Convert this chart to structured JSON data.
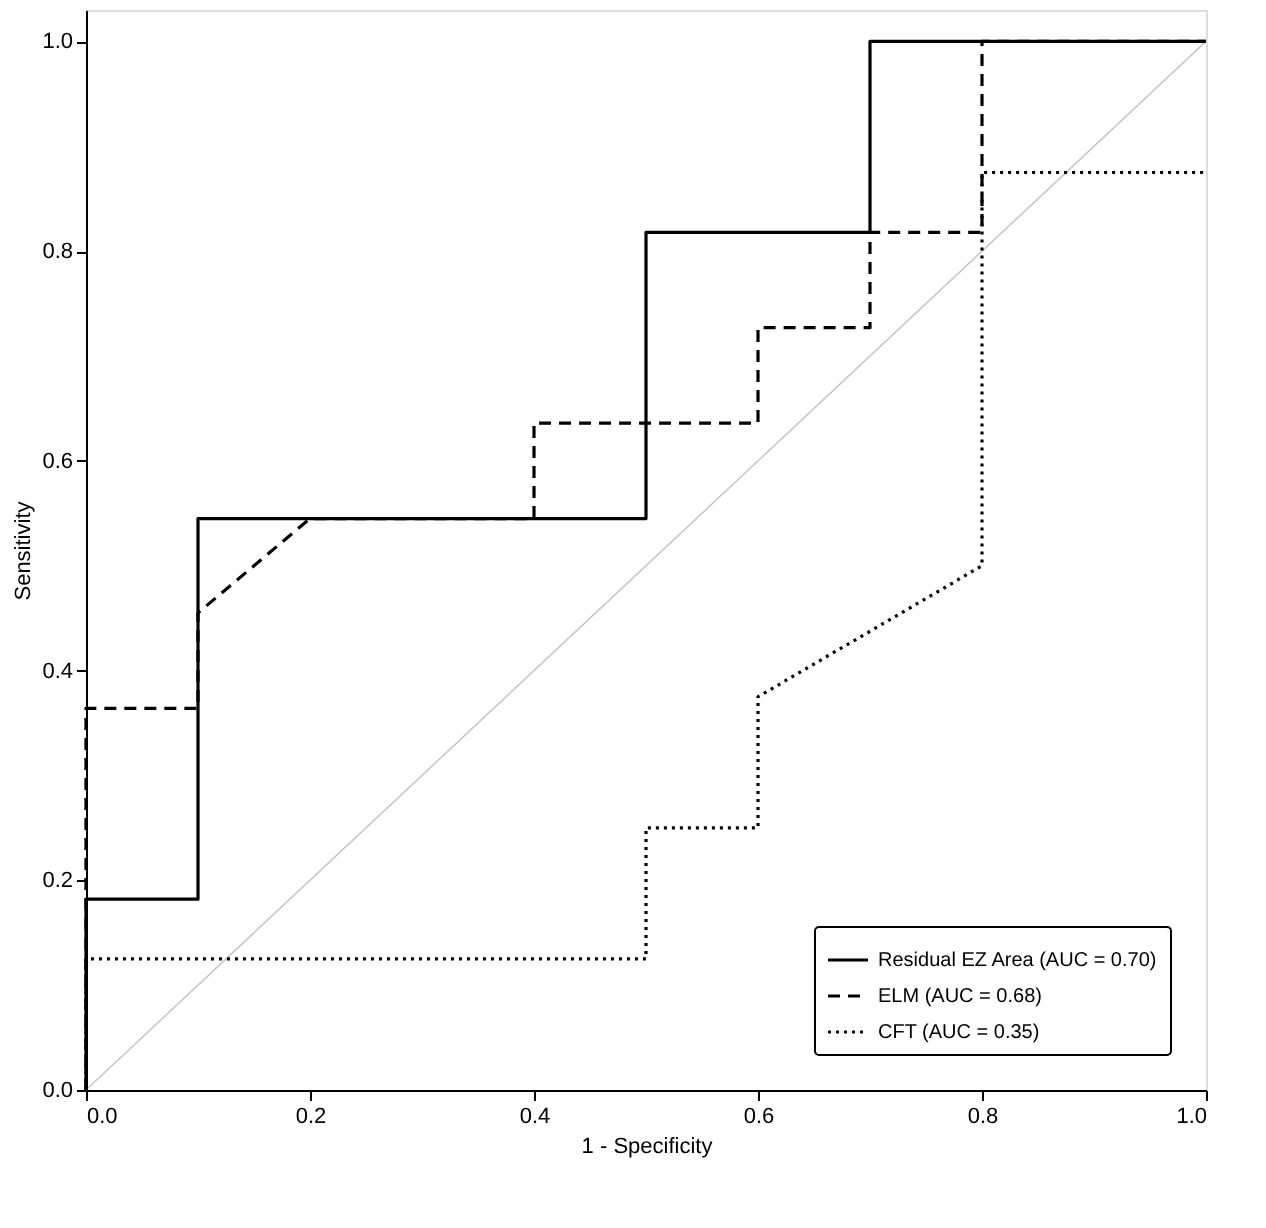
{
  "chart_data": {
    "type": "line",
    "xlabel": "1 - Specificity",
    "ylabel": "Sensitivity",
    "xlim": [
      0,
      1
    ],
    "ylim": [
      0,
      1.03
    ],
    "xticks": [
      {
        "value": 0,
        "label": "0.0"
      },
      {
        "value": 0.2,
        "label": "0.2"
      },
      {
        "value": 0.4,
        "label": "0.4"
      },
      {
        "value": 0.6,
        "label": "0.6"
      },
      {
        "value": 0.8,
        "label": "0.8"
      },
      {
        "value": 1,
        "label": "1.0"
      }
    ],
    "yticks": [
      {
        "value": 0,
        "label": "0.0"
      },
      {
        "value": 0.2,
        "label": "0.2"
      },
      {
        "value": 0.4,
        "label": "0.4"
      },
      {
        "value": 0.6,
        "label": "0.6"
      },
      {
        "value": 0.8,
        "label": "0.8"
      },
      {
        "value": 1,
        "label": "1.0"
      }
    ],
    "grid": false,
    "legend": "bottom right",
    "marker": "none",
    "series": [
      {
        "name": "Residual EZ Area (AUC = 0.70)",
        "color": "#000000",
        "line_style": "solid",
        "x": [
          0,
          0,
          0.1,
          0.1,
          0.5,
          0.5,
          0.7,
          0.7,
          1
        ],
        "values": [
          0,
          0.182,
          0.182,
          0.545,
          0.545,
          0.818,
          0.818,
          1,
          1
        ]
      },
      {
        "name": "ELM (AUC = 0.68)",
        "color": "#000000",
        "line_style": "dashed",
        "x": [
          0,
          0,
          0.1,
          0.1,
          0.2,
          0.4,
          0.4,
          0.6,
          0.6,
          0.7,
          0.7,
          0.8,
          0.8,
          1
        ],
        "values": [
          0,
          0.364,
          0.364,
          0.455,
          0.545,
          0.545,
          0.636,
          0.636,
          0.727,
          0.727,
          0.818,
          0.818,
          1,
          1
        ]
      },
      {
        "name": "CFT (AUC = 0.35)",
        "color": "#000000",
        "line_style": "dotted",
        "x": [
          0,
          0,
          0.5,
          0.5,
          0.6,
          0.6,
          0.8,
          0.8,
          1
        ],
        "values": [
          0,
          0.125,
          0.125,
          0.25,
          0.25,
          0.375,
          0.5,
          0.875,
          0.875
        ]
      },
      {
        "color": "#c8c8c8",
        "line_style": "solid",
        "x": [
          0,
          1
        ],
        "values": [
          0,
          1
        ]
      }
    ]
  }
}
